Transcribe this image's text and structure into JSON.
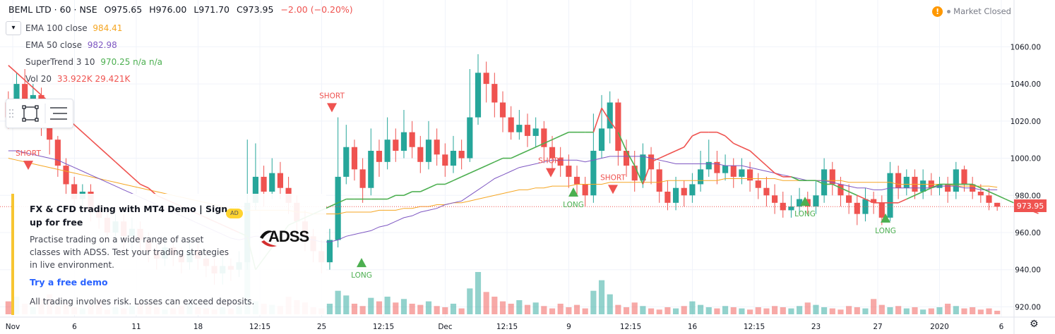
{
  "header": {
    "symbol": "BEML LTD · 60 · NSE",
    "open": "O975.65",
    "high": "H976.00",
    "low": "L971.70",
    "close": "C973.95",
    "change": "−2.00 (−0.20%)"
  },
  "indicators": [
    {
      "name": "EMA 100 close",
      "value": "984.41",
      "color": "#f5a623"
    },
    {
      "name": "EMA 50 close",
      "value": "982.98",
      "color": "#7e57c2"
    },
    {
      "name": "SuperTrend 3 10",
      "value": "970.25 n/a n/a",
      "color": "#4caf50"
    },
    {
      "name": "Vol 20",
      "value": "33.922K 29.421K",
      "color": "#ef5350"
    }
  ],
  "collapse_icon": "chevron-down-icon",
  "market_status": {
    "label": "Market Closed",
    "icon": "warning-icon"
  },
  "ad": {
    "title": "FX & CFD trading with MT4 Demo | Sign up for free",
    "badge": "AD",
    "body": "Practise trading on a wide range of asset classes with ADSS. Test your trading strategies in live environment.",
    "cta": "Try a free demo",
    "disclaimer": "All trading involves risk. Losses can exceed deposits.",
    "logo_text": "ADSS"
  },
  "colors": {
    "up": "#26a69a",
    "down": "#ef5350",
    "supertrend_up": "#4caf50",
    "supertrend_down": "#ef5350",
    "ema100": "#f5a623",
    "ema50": "#7e57c2",
    "price_line": "#ef5350"
  },
  "price_axis": {
    "ticks": [
      "1060.00",
      "1040.00",
      "1020.00",
      "1000.00",
      "980.00",
      "960.00",
      "940.00",
      "920.00"
    ],
    "last_price": "973.95"
  },
  "time_axis": {
    "ticks": [
      "Nov",
      "6",
      "11",
      "18",
      "12:15",
      "25",
      "12:15",
      "Dec",
      "12:15",
      "9",
      "12:15",
      "16",
      "12:15",
      "23",
      "27",
      "2020",
      "6"
    ]
  },
  "signals": [
    {
      "label": "SHORT",
      "price": 996
    },
    {
      "label": "SHORT",
      "price": 992
    },
    {
      "label": "SHORT",
      "price": 983
    },
    {
      "label": "LONG",
      "price": 944
    },
    {
      "label": "LONG",
      "price": 982
    },
    {
      "label": "LONG",
      "price": 977
    },
    {
      "label": "LONG",
      "price": 968
    },
    {
      "label": "SHORT",
      "price": 1027
    }
  ],
  "chart_data": {
    "type": "candlestick",
    "ylim": [
      916,
      1070
    ],
    "candles": [
      {
        "o": 1030,
        "c": 1022,
        "h": 1036,
        "l": 1016
      },
      {
        "o": 1022,
        "c": 1040,
        "h": 1046,
        "l": 1018
      },
      {
        "o": 1040,
        "c": 1028,
        "h": 1048,
        "l": 1024
      },
      {
        "o": 1028,
        "c": 1034,
        "h": 1040,
        "l": 1020
      },
      {
        "o": 1034,
        "c": 1020,
        "h": 1038,
        "l": 1012
      },
      {
        "o": 1020,
        "c": 1010,
        "h": 1024,
        "l": 1002
      },
      {
        "o": 1010,
        "c": 996,
        "h": 1012,
        "l": 990
      },
      {
        "o": 996,
        "c": 986,
        "h": 1000,
        "l": 980
      },
      {
        "o": 986,
        "c": 978,
        "h": 990,
        "l": 970
      },
      {
        "o": 978,
        "c": 982,
        "h": 986,
        "l": 972
      },
      {
        "o": 982,
        "c": 972,
        "h": 986,
        "l": 966
      },
      {
        "o": 972,
        "c": 968,
        "h": 976,
        "l": 962
      },
      {
        "o": 968,
        "c": 960,
        "h": 972,
        "l": 956
      },
      {
        "o": 960,
        "c": 966,
        "h": 970,
        "l": 954
      },
      {
        "o": 966,
        "c": 958,
        "h": 970,
        "l": 950
      },
      {
        "o": 958,
        "c": 962,
        "h": 968,
        "l": 950
      },
      {
        "o": 962,
        "c": 956,
        "h": 966,
        "l": 948
      },
      {
        "o": 956,
        "c": 950,
        "h": 960,
        "l": 944
      },
      {
        "o": 950,
        "c": 946,
        "h": 954,
        "l": 940
      },
      {
        "o": 946,
        "c": 952,
        "h": 958,
        "l": 942
      },
      {
        "o": 952,
        "c": 948,
        "h": 958,
        "l": 942
      },
      {
        "o": 948,
        "c": 944,
        "h": 952,
        "l": 938
      },
      {
        "o": 944,
        "c": 950,
        "h": 956,
        "l": 940
      },
      {
        "o": 950,
        "c": 946,
        "h": 954,
        "l": 940
      },
      {
        "o": 946,
        "c": 942,
        "h": 950,
        "l": 936
      },
      {
        "o": 942,
        "c": 938,
        "h": 946,
        "l": 932
      },
      {
        "o": 938,
        "c": 942,
        "h": 948,
        "l": 932
      },
      {
        "o": 942,
        "c": 940,
        "h": 946,
        "l": 934
      },
      {
        "o": 940,
        "c": 944,
        "h": 950,
        "l": 936
      },
      {
        "o": 944,
        "c": 976,
        "h": 1010,
        "l": 940
      },
      {
        "o": 976,
        "c": 990,
        "h": 1008,
        "l": 972
      },
      {
        "o": 990,
        "c": 982,
        "h": 996,
        "l": 974
      },
      {
        "o": 982,
        "c": 992,
        "h": 1000,
        "l": 978
      },
      {
        "o": 992,
        "c": 984,
        "h": 998,
        "l": 978
      },
      {
        "o": 984,
        "c": 976,
        "h": 990,
        "l": 970
      },
      {
        "o": 976,
        "c": 966,
        "h": 980,
        "l": 958
      },
      {
        "o": 966,
        "c": 958,
        "h": 972,
        "l": 950
      },
      {
        "o": 958,
        "c": 950,
        "h": 962,
        "l": 944
      },
      {
        "o": 950,
        "c": 944,
        "h": 956,
        "l": 938
      },
      {
        "o": 944,
        "c": 956,
        "h": 962,
        "l": 940
      },
      {
        "o": 956,
        "c": 990,
        "h": 1022,
        "l": 952
      },
      {
        "o": 990,
        "c": 1006,
        "h": 1018,
        "l": 986
      },
      {
        "o": 1006,
        "c": 994,
        "h": 1010,
        "l": 988
      },
      {
        "o": 994,
        "c": 984,
        "h": 1000,
        "l": 976
      },
      {
        "o": 984,
        "c": 1004,
        "h": 1016,
        "l": 980
      },
      {
        "o": 1004,
        "c": 998,
        "h": 1010,
        "l": 990
      },
      {
        "o": 998,
        "c": 1010,
        "h": 1022,
        "l": 994
      },
      {
        "o": 1010,
        "c": 1004,
        "h": 1016,
        "l": 998
      },
      {
        "o": 1004,
        "c": 1014,
        "h": 1026,
        "l": 1000
      },
      {
        "o": 1014,
        "c": 1006,
        "h": 1020,
        "l": 1000
      },
      {
        "o": 1006,
        "c": 998,
        "h": 1012,
        "l": 992
      },
      {
        "o": 998,
        "c": 1010,
        "h": 1020,
        "l": 994
      },
      {
        "o": 1010,
        "c": 1002,
        "h": 1016,
        "l": 996
      },
      {
        "o": 1002,
        "c": 996,
        "h": 1008,
        "l": 990
      },
      {
        "o": 996,
        "c": 1004,
        "h": 1012,
        "l": 992
      },
      {
        "o": 1004,
        "c": 1000,
        "h": 1010,
        "l": 994
      },
      {
        "o": 1000,
        "c": 1022,
        "h": 1048,
        "l": 998
      },
      {
        "o": 1022,
        "c": 1046,
        "h": 1056,
        "l": 1018
      },
      {
        "o": 1046,
        "c": 1040,
        "h": 1052,
        "l": 1030
      },
      {
        "o": 1040,
        "c": 1030,
        "h": 1046,
        "l": 1022
      },
      {
        "o": 1030,
        "c": 1022,
        "h": 1036,
        "l": 1014
      },
      {
        "o": 1022,
        "c": 1014,
        "h": 1028,
        "l": 1010
      },
      {
        "o": 1014,
        "c": 1018,
        "h": 1026,
        "l": 1010
      },
      {
        "o": 1018,
        "c": 1012,
        "h": 1024,
        "l": 1006
      },
      {
        "o": 1012,
        "c": 1016,
        "h": 1022,
        "l": 1006
      },
      {
        "o": 1016,
        "c": 1006,
        "h": 1020,
        "l": 1000
      },
      {
        "o": 1006,
        "c": 1000,
        "h": 1012,
        "l": 994
      },
      {
        "o": 1000,
        "c": 996,
        "h": 1006,
        "l": 990
      },
      {
        "o": 996,
        "c": 990,
        "h": 1002,
        "l": 984
      },
      {
        "o": 990,
        "c": 986,
        "h": 996,
        "l": 980
      },
      {
        "o": 986,
        "c": 980,
        "h": 990,
        "l": 974
      },
      {
        "o": 980,
        "c": 1004,
        "h": 1024,
        "l": 976
      },
      {
        "o": 1004,
        "c": 1016,
        "h": 1034,
        "l": 1000
      },
      {
        "o": 1016,
        "c": 1030,
        "h": 1036,
        "l": 1008
      },
      {
        "o": 1030,
        "c": 1004,
        "h": 1032,
        "l": 996
      },
      {
        "o": 1004,
        "c": 996,
        "h": 1010,
        "l": 990
      },
      {
        "o": 996,
        "c": 988,
        "h": 1004,
        "l": 982
      },
      {
        "o": 988,
        "c": 1002,
        "h": 1008,
        "l": 984
      },
      {
        "o": 1002,
        "c": 994,
        "h": 1006,
        "l": 986
      },
      {
        "o": 994,
        "c": 982,
        "h": 998,
        "l": 976
      },
      {
        "o": 982,
        "c": 976,
        "h": 988,
        "l": 972
      },
      {
        "o": 976,
        "c": 984,
        "h": 990,
        "l": 972
      },
      {
        "o": 984,
        "c": 980,
        "h": 988,
        "l": 974
      },
      {
        "o": 980,
        "c": 986,
        "h": 992,
        "l": 976
      },
      {
        "o": 986,
        "c": 994,
        "h": 1004,
        "l": 982
      },
      {
        "o": 994,
        "c": 998,
        "h": 1010,
        "l": 990
      },
      {
        "o": 998,
        "c": 992,
        "h": 1004,
        "l": 986
      },
      {
        "o": 992,
        "c": 996,
        "h": 1002,
        "l": 988
      },
      {
        "o": 996,
        "c": 990,
        "h": 1000,
        "l": 984
      },
      {
        "o": 990,
        "c": 994,
        "h": 1000,
        "l": 986
      },
      {
        "o": 994,
        "c": 988,
        "h": 998,
        "l": 982
      },
      {
        "o": 988,
        "c": 984,
        "h": 992,
        "l": 978
      },
      {
        "o": 984,
        "c": 980,
        "h": 990,
        "l": 974
      },
      {
        "o": 980,
        "c": 976,
        "h": 986,
        "l": 970
      },
      {
        "o": 976,
        "c": 972,
        "h": 982,
        "l": 968
      },
      {
        "o": 972,
        "c": 974,
        "h": 980,
        "l": 968
      },
      {
        "o": 974,
        "c": 978,
        "h": 984,
        "l": 970
      },
      {
        "o": 978,
        "c": 974,
        "h": 982,
        "l": 970
      },
      {
        "o": 974,
        "c": 980,
        "h": 988,
        "l": 970
      },
      {
        "o": 980,
        "c": 994,
        "h": 1000,
        "l": 976
      },
      {
        "o": 994,
        "c": 986,
        "h": 998,
        "l": 980
      },
      {
        "o": 986,
        "c": 980,
        "h": 990,
        "l": 974
      },
      {
        "o": 980,
        "c": 976,
        "h": 986,
        "l": 970
      },
      {
        "o": 976,
        "c": 970,
        "h": 980,
        "l": 964
      },
      {
        "o": 970,
        "c": 978,
        "h": 984,
        "l": 966
      },
      {
        "o": 978,
        "c": 976,
        "h": 982,
        "l": 970
      },
      {
        "o": 976,
        "c": 968,
        "h": 980,
        "l": 964
      },
      {
        "o": 968,
        "c": 992,
        "h": 998,
        "l": 966
      },
      {
        "o": 992,
        "c": 984,
        "h": 996,
        "l": 978
      },
      {
        "o": 984,
        "c": 990,
        "h": 994,
        "l": 980
      },
      {
        "o": 990,
        "c": 982,
        "h": 994,
        "l": 978
      },
      {
        "o": 982,
        "c": 988,
        "h": 994,
        "l": 978
      },
      {
        "o": 988,
        "c": 984,
        "h": 992,
        "l": 980
      },
      {
        "o": 984,
        "c": 986,
        "h": 990,
        "l": 980
      },
      {
        "o": 986,
        "c": 982,
        "h": 990,
        "l": 976
      },
      {
        "o": 982,
        "c": 994,
        "h": 998,
        "l": 978
      },
      {
        "o": 994,
        "c": 986,
        "h": 996,
        "l": 982
      },
      {
        "o": 986,
        "c": 982,
        "h": 990,
        "l": 978
      },
      {
        "o": 982,
        "c": 980,
        "h": 986,
        "l": 976
      },
      {
        "o": 980,
        "c": 976,
        "h": 984,
        "l": 972
      },
      {
        "o": 976,
        "c": 973.95,
        "h": 976,
        "l": 971.7
      }
    ],
    "volume": [
      22,
      30,
      18,
      12,
      26,
      34,
      14,
      20,
      12,
      10,
      16,
      24,
      8,
      12,
      10,
      14,
      20,
      18,
      12,
      8,
      10,
      14,
      18,
      12,
      10,
      8,
      12,
      10,
      14,
      96,
      22,
      18,
      16,
      14,
      30,
      24,
      20,
      12,
      10,
      18,
      40,
      32,
      18,
      14,
      28,
      22,
      30,
      20,
      26,
      18,
      16,
      22,
      14,
      12,
      18,
      10,
      44,
      72,
      38,
      30,
      22,
      18,
      24,
      16,
      20,
      14,
      10,
      18,
      12,
      16,
      10,
      40,
      58,
      34,
      16,
      12,
      20,
      14,
      10,
      8,
      12,
      10,
      14,
      22,
      16,
      12,
      10,
      14,
      12,
      10,
      8,
      12,
      10,
      14,
      12,
      10,
      14,
      20,
      16,
      12,
      10,
      8,
      14,
      12,
      10,
      26,
      16,
      12,
      14,
      10,
      12,
      8,
      10,
      12,
      18,
      14,
      10,
      12,
      8,
      10,
      6
    ],
    "ema100": [
      1000,
      999,
      998,
      997,
      996,
      995,
      994,
      993,
      992,
      991,
      990,
      989,
      988,
      987,
      986,
      985,
      984,
      983,
      982,
      981,
      980,
      979,
      978,
      977,
      976,
      975,
      974,
      973,
      972,
      972,
      972,
      972,
      972,
      972,
      972,
      971,
      971,
      970,
      970,
      970,
      970,
      971,
      971,
      971,
      971,
      972,
      972,
      972,
      973,
      973,
      974,
      974,
      975,
      975,
      976,
      976,
      977,
      978,
      979,
      980,
      981,
      982,
      983,
      983,
      984,
      984,
      985,
      985,
      985,
      986,
      986,
      986,
      986,
      987,
      987,
      987,
      987,
      987,
      987,
      987,
      988,
      988,
      988,
      988,
      988,
      988,
      988,
      989,
      989,
      989,
      989,
      989,
      989,
      989,
      988,
      988,
      988,
      988,
      988,
      988,
      988,
      988,
      987,
      987,
      987,
      987,
      987,
      987,
      986,
      986,
      986,
      986,
      986,
      986,
      986,
      985,
      985,
      985,
      985,
      985,
      984.4
    ],
    "ema50": [
      1004,
      1004,
      1003,
      1002,
      1001,
      1000,
      999,
      997,
      995,
      993,
      991,
      989,
      987,
      985,
      983,
      981,
      979,
      977,
      975,
      973,
      971,
      969,
      967,
      965,
      963,
      961,
      959,
      957,
      956,
      957,
      958,
      958,
      959,
      959,
      959,
      958,
      957,
      956,
      955,
      955,
      956,
      958,
      959,
      960,
      961,
      963,
      964,
      966,
      968,
      969,
      971,
      972,
      973,
      975,
      976,
      977,
      980,
      983,
      986,
      989,
      991,
      993,
      995,
      996,
      997,
      998,
      999,
      999,
      999,
      999,
      998,
      999,
      1000,
      1001,
      1001,
      1001,
      1001,
      1001,
      1000,
      999,
      998,
      997,
      997,
      997,
      997,
      997,
      997,
      996,
      996,
      996,
      995,
      994,
      993,
      992,
      991,
      990,
      989,
      988,
      988,
      988,
      987,
      986,
      985,
      984,
      984,
      983,
      983,
      984,
      984,
      984,
      984,
      984,
      984,
      985,
      985,
      985,
      984,
      984,
      983,
      983,
      983
    ],
    "supertrend": [
      1050,
      1046,
      1042,
      1038,
      1034,
      1030,
      1026,
      1022,
      1018,
      1014,
      1010,
      1006,
      1002,
      998,
      994,
      990,
      986,
      984,
      980,
      978,
      976,
      974,
      972,
      970,
      968,
      966,
      964,
      962,
      960,
      958,
      940,
      946,
      952,
      958,
      964,
      966,
      968,
      970,
      972,
      974,
      976,
      978,
      978,
      978,
      978,
      978,
      978,
      980,
      980,
      982,
      982,
      984,
      986,
      986,
      988,
      990,
      992,
      994,
      996,
      998,
      1000,
      1000,
      1002,
      1004,
      1006,
      1008,
      1010,
      1012,
      1014,
      1014,
      1014,
      1014,
      1027,
      1020,
      1014,
      1004,
      996,
      986,
      998,
      1000,
      1002,
      1004,
      1006,
      1012,
      1014,
      1014,
      1014,
      1012,
      1008,
      1006,
      1004,
      1000,
      996,
      992,
      990,
      990,
      988,
      988,
      988,
      986,
      986,
      984,
      982,
      980,
      978,
      976,
      976,
      976,
      976,
      978,
      980,
      982,
      984,
      986,
      986,
      986,
      986,
      986,
      984,
      982,
      980,
      978,
      976,
      974,
      972,
      970.25
    ],
    "supertrend_dir": [
      -1,
      -1,
      -1,
      -1,
      -1,
      -1,
      -1,
      -1,
      -1,
      -1,
      -1,
      -1,
      -1,
      -1,
      -1,
      -1,
      -1,
      -1,
      -1,
      -1,
      -1,
      -1,
      -1,
      -1,
      -1,
      -1,
      -1,
      -1,
      -1,
      1,
      1,
      1,
      1,
      1,
      1,
      1,
      1,
      1,
      1,
      1,
      1,
      1,
      1,
      1,
      1,
      1,
      1,
      1,
      1,
      1,
      1,
      1,
      1,
      1,
      1,
      1,
      1,
      1,
      1,
      1,
      1,
      1,
      1,
      1,
      1,
      1,
      1,
      1,
      1,
      1,
      1,
      1,
      -1,
      -1,
      -1,
      1,
      1,
      1,
      -1,
      -1,
      -1,
      -1,
      -1,
      -1,
      -1,
      -1,
      -1,
      -1,
      -1,
      -1,
      -1,
      -1,
      -1,
      -1,
      -1,
      -1,
      1,
      1,
      1,
      1,
      1,
      1,
      1,
      1,
      -1,
      -1,
      -1,
      -1,
      -1,
      -1,
      1,
      1,
      1,
      1,
      1,
      1,
      1,
      1,
      1,
      1,
      1,
      1,
      1,
      1,
      1
    ]
  }
}
